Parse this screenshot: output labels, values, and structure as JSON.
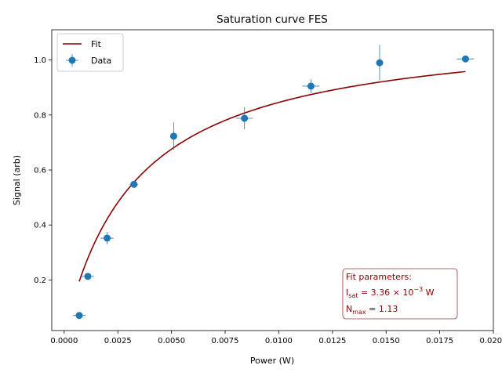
{
  "chart_data": {
    "type": "scatter",
    "title": "Saturation curve FES",
    "xlabel": "Power (W)",
    "ylabel": "Signal (arb)",
    "xlim": [
      -0.00058,
      0.02
    ],
    "ylim": [
      0.016,
      1.11
    ],
    "xticks": [
      0.0,
      0.0025,
      0.005,
      0.0075,
      0.01,
      0.0125,
      0.015,
      0.0175,
      0.02
    ],
    "xtick_labels": [
      "0.0000",
      "0.0025",
      "0.0050",
      "0.0075",
      "0.0100",
      "0.0125",
      "0.0150",
      "0.0175",
      "0.0200"
    ],
    "yticks": [
      0.2,
      0.4,
      0.6,
      0.8,
      1.0
    ],
    "ytick_labels": [
      "0.2",
      "0.4",
      "0.6",
      "0.8",
      "1.0"
    ],
    "grid": false,
    "legend": {
      "placement": "upper-left",
      "entries": [
        "Fit",
        "Data"
      ]
    },
    "series": [
      {
        "name": "Data",
        "kind": "errorbar",
        "color": "#1f77b4",
        "points": [
          {
            "x": 0.0007,
            "y": 0.071,
            "xerr": 0.0003,
            "yerr": 0.006
          },
          {
            "x": 0.0011,
            "y": 0.213,
            "xerr": 0.0003,
            "yerr": 0.012
          },
          {
            "x": 0.002,
            "y": 0.352,
            "xerr": 0.0003,
            "yerr": 0.023
          },
          {
            "x": 0.00325,
            "y": 0.548,
            "xerr": 0.0002,
            "yerr": 0.008
          },
          {
            "x": 0.0051,
            "y": 0.723,
            "xerr": 0.0001,
            "yerr": 0.05
          },
          {
            "x": 0.0084,
            "y": 0.788,
            "xerr": 0.0004,
            "yerr": 0.04
          },
          {
            "x": 0.0115,
            "y": 0.905,
            "xerr": 0.0004,
            "yerr": 0.025
          },
          {
            "x": 0.0147,
            "y": 0.99,
            "xerr": 0.0001,
            "yerr": 0.065
          },
          {
            "x": 0.0187,
            "y": 1.004,
            "xerr": 0.0004,
            "yerr": 0.005
          }
        ]
      },
      {
        "name": "Fit",
        "kind": "line",
        "color": "#8b0000",
        "x_range": [
          0.0007,
          0.0187
        ],
        "model": {
          "I_sat": 0.00336,
          "N_max": 1.13
        }
      }
    ],
    "annotation": {
      "lines": [
        "Fit parameters:",
        "I_sat = 3.36 × 10^−3 W",
        "N_max = 1.13"
      ],
      "title": "Fit parameters:",
      "isat_sym": "I",
      "isat_sub": "sat",
      "isat_mid": " = 3.36 × 10",
      "isat_exp": "−3",
      "isat_unit": " W",
      "nmax_sym": "N",
      "nmax_sub": "max",
      "nmax_val": " = 1.13",
      "color": "#8b0000"
    }
  }
}
